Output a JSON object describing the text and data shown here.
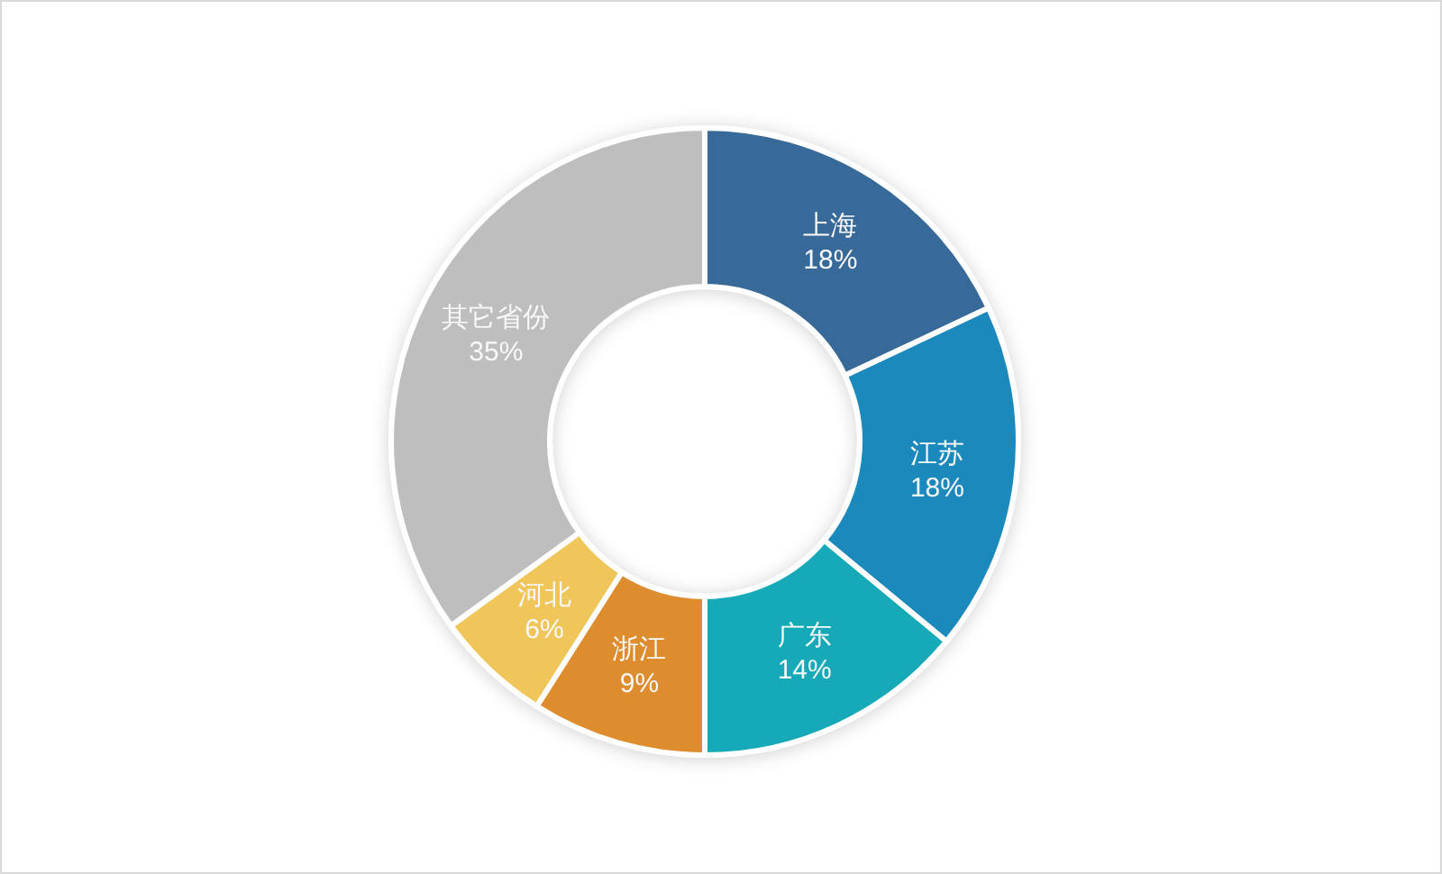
{
  "chart_data": {
    "type": "donut",
    "categories": [
      "上海",
      "江苏",
      "广东",
      "浙江",
      "河北",
      "其它省份"
    ],
    "values": [
      18,
      18,
      14,
      9,
      6,
      35
    ],
    "value_labels": [
      "18%",
      "18%",
      "14%",
      "9%",
      "6%",
      "35%"
    ],
    "colors": [
      "#386b99",
      "#1b89bd",
      "#15aab8",
      "#de8d2e",
      "#f0c65a",
      "#bebebe"
    ]
  }
}
